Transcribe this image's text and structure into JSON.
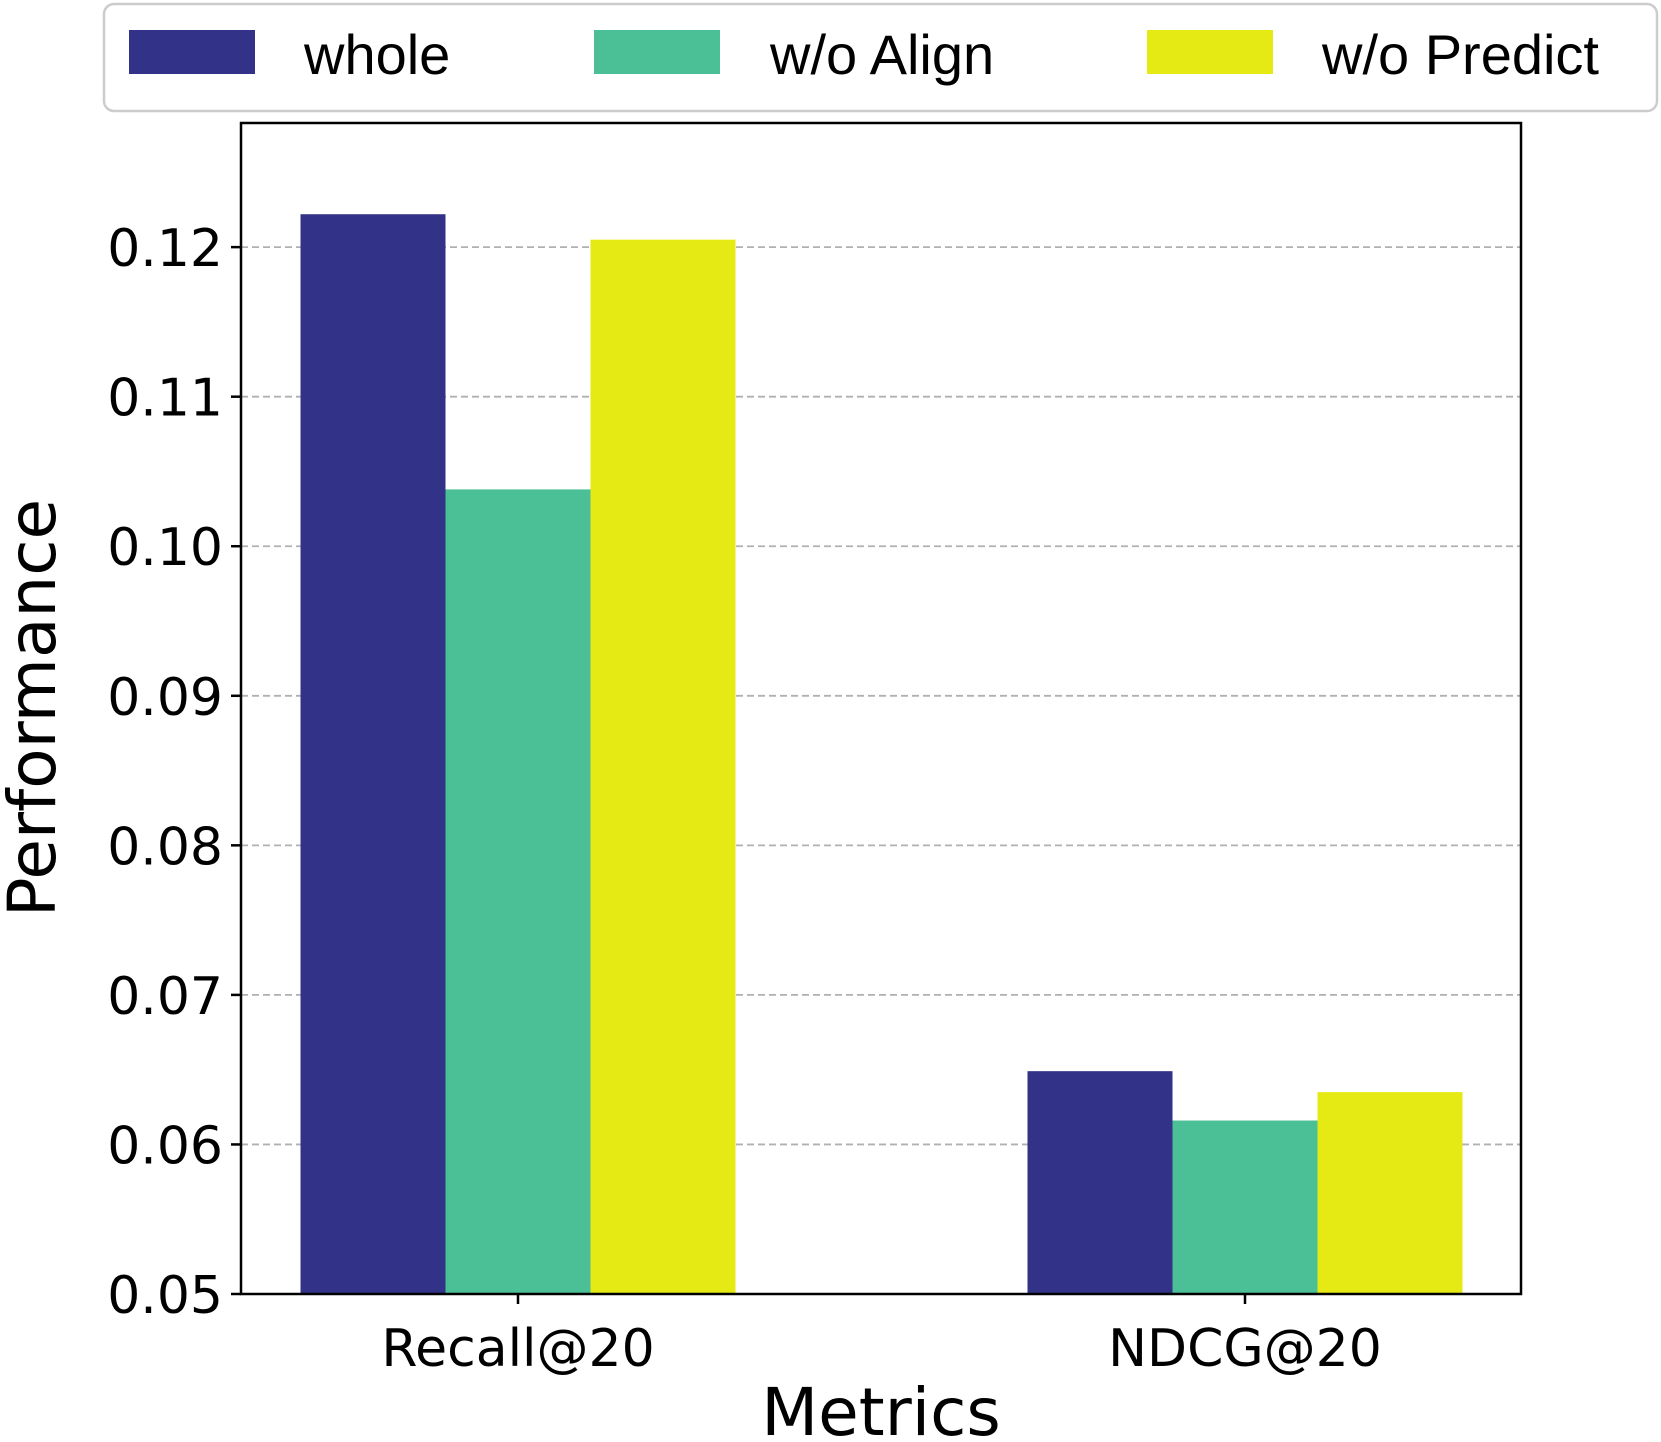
{
  "chart_data": {
    "type": "bar",
    "title": "",
    "xlabel": "Metrics",
    "ylabel": "Performance",
    "categories": [
      "Recall@20",
      "NDCG@20"
    ],
    "series": [
      {
        "name": "whole",
        "color": "#323288",
        "values": [
          0.1222,
          0.0649
        ]
      },
      {
        "name": "w/o Align",
        "color": "#4bbf96",
        "values": [
          0.1038,
          0.0616
        ]
      },
      {
        "name": "w/o Predict",
        "color": "#e6ea14",
        "values": [
          0.1205,
          0.0635
        ]
      }
    ],
    "ylim": [
      0.05,
      0.1283
    ],
    "yticks": [
      0.05,
      0.06,
      0.07,
      0.08,
      0.09,
      0.1,
      0.11,
      0.12
    ],
    "ytick_labels": [
      "0.05",
      "0.06",
      "0.07",
      "0.08",
      "0.09",
      "0.10",
      "0.11",
      "0.12"
    ],
    "grid": "horizontal-dashed",
    "legend": {
      "position": "top",
      "columns": 3
    }
  }
}
